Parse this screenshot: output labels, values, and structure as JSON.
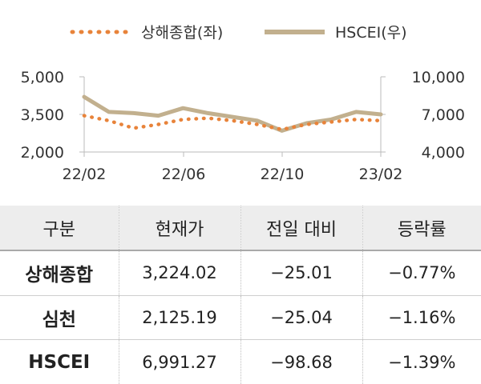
{
  "chart_data": {
    "type": "line",
    "x_ticks": [
      "22/02",
      "22/06",
      "22/10",
      "23/02"
    ],
    "y_left": {
      "ticks": [
        "5,000",
        "3,500",
        "2,000"
      ],
      "range": [
        2000,
        5000
      ]
    },
    "y_right": {
      "ticks": [
        "10,000",
        "7,000",
        "4,000"
      ],
      "range": [
        4000,
        10000
      ]
    },
    "x_range": [
      "2022-02",
      "2023-02"
    ],
    "legend_position": "top",
    "series": [
      {
        "name": "상해종합(좌)",
        "axis": "left",
        "style": "dotted",
        "color": "#e8833a",
        "x": [
          "2022-02",
          "2022-03",
          "2022-04",
          "2022-05",
          "2022-06",
          "2022-07",
          "2022-08",
          "2022-09",
          "2022-10",
          "2022-11",
          "2022-12",
          "2023-01",
          "2023-02"
        ],
        "values": [
          3450,
          3250,
          2950,
          3100,
          3300,
          3350,
          3250,
          3100,
          2900,
          3100,
          3200,
          3300,
          3250
        ]
      },
      {
        "name": "HSCEI(우)",
        "axis": "right",
        "style": "solid",
        "color": "#c2b08e",
        "x": [
          "2022-02",
          "2022-03",
          "2022-04",
          "2022-05",
          "2022-06",
          "2022-07",
          "2022-08",
          "2022-09",
          "2022-10",
          "2022-11",
          "2022-12",
          "2023-01",
          "2023-02"
        ],
        "values": [
          8400,
          7200,
          7100,
          6900,
          7500,
          7100,
          6800,
          6500,
          5700,
          6300,
          6600,
          7200,
          7000
        ]
      }
    ]
  },
  "table": {
    "headers": [
      "구분",
      "현재가",
      "전일 대비",
      "등락률"
    ],
    "rows": [
      [
        "상해종합",
        "3,224.02",
        "−25.01",
        "−0.77%"
      ],
      [
        "심천",
        "2,125.19",
        "−25.04",
        "−1.16%"
      ],
      [
        "HSCEI",
        "6,991.27",
        "−98.68",
        "−1.39%"
      ]
    ]
  }
}
